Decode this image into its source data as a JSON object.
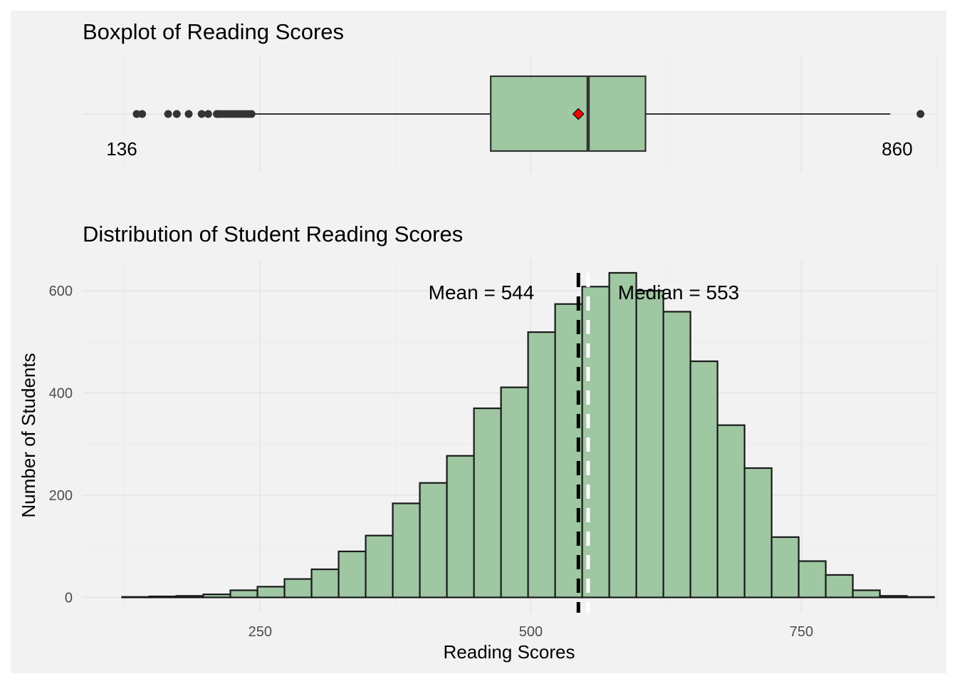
{
  "chart_data": [
    {
      "type": "boxplot",
      "title": "Boxplot of Reading Scores",
      "xlim": [
        86,
        874
      ],
      "q1": 463,
      "median": 553,
      "q3": 606,
      "mean": 544,
      "whisker_low": 243,
      "whisker_high": 832,
      "min": 136,
      "max": 860,
      "outliers": [
        136,
        141,
        165,
        173,
        184,
        196,
        202,
        210,
        212,
        215,
        218,
        221,
        224,
        227,
        230,
        233,
        236,
        239,
        242,
        860
      ],
      "min_label": "136",
      "max_label": "860",
      "box_fill": "#9ec7a2",
      "mean_marker_color": "#ff0000",
      "grid": true
    },
    {
      "type": "histogram",
      "title": "Distribution of Student Reading Scores",
      "xlabel": "Reading Scores",
      "ylabel": "Number of Students",
      "xlim": [
        86,
        874
      ],
      "ylim": [
        -30,
        660
      ],
      "xticks": [
        "250",
        "500",
        "750"
      ],
      "yticks": [
        "0",
        "200",
        "400",
        "600"
      ],
      "bin_width": 25,
      "bins_start": 122.5,
      "counts": [
        1,
        2,
        3,
        6,
        14,
        21,
        36,
        55,
        90,
        121,
        184,
        224,
        277,
        370,
        411,
        519,
        574,
        608,
        635,
        600,
        559,
        462,
        337,
        253,
        118,
        71,
        44,
        14,
        3,
        1
      ],
      "mean": 544,
      "median": 553,
      "mean_label": "Mean = 544",
      "median_label": "Median = 553",
      "bar_fill": "#9ec7a2",
      "mean_line_color": "#000000",
      "median_line_color": "#ffffff",
      "grid": true
    }
  ]
}
